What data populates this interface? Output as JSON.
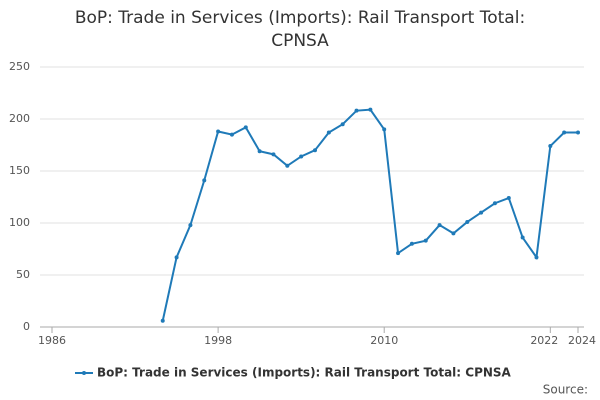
{
  "chart_data": {
    "type": "line",
    "title_lines": [
      "BoP: Trade in Services (Imports): Rail Transport Total:",
      "CPNSA"
    ],
    "x": [
      1994,
      1995,
      1996,
      1997,
      1998,
      1999,
      2000,
      2001,
      2002,
      2003,
      2004,
      2005,
      2006,
      2007,
      2008,
      2009,
      2010,
      2011,
      2012,
      2013,
      2014,
      2015,
      2016,
      2017,
      2018,
      2019,
      2020,
      2021,
      2022,
      2023,
      2024
    ],
    "series": [
      {
        "name": "BoP: Trade in Services (Imports): Rail Transport Total: CPNSA",
        "color": "#1f7ab8",
        "values": [
          6,
          67,
          98,
          141,
          188,
          185,
          192,
          169,
          166,
          155,
          164,
          170,
          187,
          195,
          208,
          209,
          190,
          71,
          80,
          83,
          98,
          90,
          101,
          110,
          119,
          124,
          86,
          67,
          174,
          187,
          187
        ]
      }
    ],
    "xlim": [
      1986,
      2024
    ],
    "xticks": [
      1986,
      1998,
      2010,
      2022,
      2024
    ],
    "ylim": [
      0,
      250
    ],
    "yticks": [
      0,
      50,
      100,
      150,
      200,
      250
    ],
    "grid": true,
    "legend": "bottom",
    "source": "Source:"
  }
}
